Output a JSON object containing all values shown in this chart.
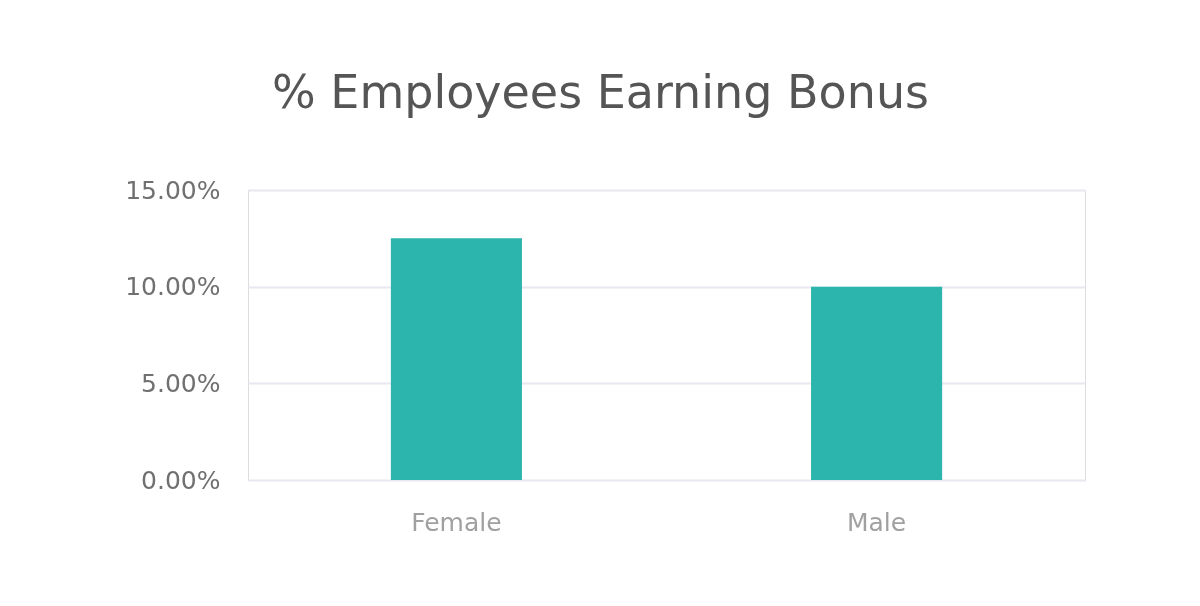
{
  "chart_data": {
    "type": "bar",
    "title": "% Employees Earning Bonus",
    "categories": [
      "Female",
      "Male"
    ],
    "series": [
      {
        "color": "#2bb5ad",
        "values": [
          12.5,
          10.0
        ]
      }
    ],
    "ylim": [
      0,
      15
    ],
    "yticks": [
      {
        "value": 0,
        "label": "0.00%"
      },
      {
        "value": 5,
        "label": "5.00%"
      },
      {
        "value": 10,
        "label": "10.00%"
      },
      {
        "value": 15,
        "label": "15.00%"
      }
    ],
    "grid": "y"
  }
}
